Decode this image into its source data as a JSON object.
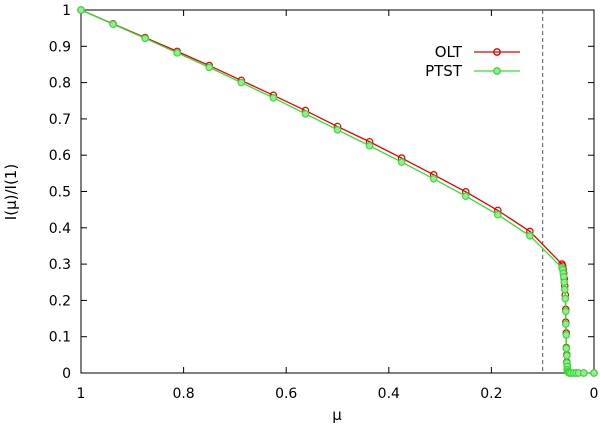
{
  "chart_data": {
    "type": "line",
    "title": "",
    "xlabel": "μ",
    "ylabel": "I(μ)/I(1)",
    "xlim": [
      1,
      0
    ],
    "ylim": [
      0,
      1
    ],
    "x_reversed": true,
    "grid": false,
    "legend_position": "top-right",
    "x_ticks": [
      "1",
      "0.8",
      "0.6",
      "0.4",
      "0.2",
      "0"
    ],
    "y_ticks": [
      "0",
      "0.1",
      "0.2",
      "0.3",
      "0.4",
      "0.5",
      "0.6",
      "0.7",
      "0.8",
      "0.9",
      "1"
    ],
    "reference_line_x": 0.1,
    "series": [
      {
        "name": "OLT",
        "color": "#e00000",
        "x": [
          1.0,
          0.9375,
          0.875,
          0.8125,
          0.75,
          0.6875,
          0.625,
          0.5625,
          0.5,
          0.4375,
          0.375,
          0.3125,
          0.25,
          0.1875,
          0.125,
          0.0625,
          0.061,
          0.06,
          0.059,
          0.058,
          0.057,
          0.056,
          0.055,
          0.055,
          0.054,
          0.054,
          0.053,
          0.053,
          0.052,
          0.052,
          0.051,
          0.05,
          0.048,
          0.045,
          0.04,
          0.035,
          0.03,
          0.02,
          0.0
        ],
        "y": [
          1.0,
          0.962,
          0.924,
          0.886,
          0.847,
          0.806,
          0.765,
          0.723,
          0.679,
          0.637,
          0.592,
          0.546,
          0.499,
          0.448,
          0.39,
          0.3,
          0.295,
          0.285,
          0.275,
          0.26,
          0.24,
          0.215,
          0.175,
          0.14,
          0.11,
          0.07,
          0.05,
          0.03,
          0.02,
          0.01,
          0.005,
          0.002,
          0.0,
          0.0,
          0.0,
          0.0,
          0.0,
          0.0,
          0.0
        ]
      },
      {
        "name": "PTST",
        "color": "#33dd33",
        "x": [
          1.0,
          0.9375,
          0.875,
          0.8125,
          0.75,
          0.6875,
          0.625,
          0.5625,
          0.5,
          0.4375,
          0.375,
          0.3125,
          0.25,
          0.1875,
          0.125,
          0.0625,
          0.061,
          0.06,
          0.059,
          0.058,
          0.057,
          0.056,
          0.055,
          0.055,
          0.054,
          0.054,
          0.053,
          0.053,
          0.052,
          0.052,
          0.051,
          0.05,
          0.048,
          0.045,
          0.04,
          0.035,
          0.03,
          0.02,
          0.0
        ],
        "y": [
          1.0,
          0.961,
          0.922,
          0.882,
          0.842,
          0.8,
          0.758,
          0.714,
          0.67,
          0.626,
          0.581,
          0.535,
          0.487,
          0.436,
          0.378,
          0.29,
          0.285,
          0.275,
          0.265,
          0.25,
          0.23,
          0.205,
          0.17,
          0.135,
          0.105,
          0.068,
          0.048,
          0.028,
          0.018,
          0.009,
          0.004,
          0.002,
          0.0,
          0.0,
          0.0,
          0.0,
          0.0,
          0.0,
          0.0
        ]
      }
    ]
  }
}
